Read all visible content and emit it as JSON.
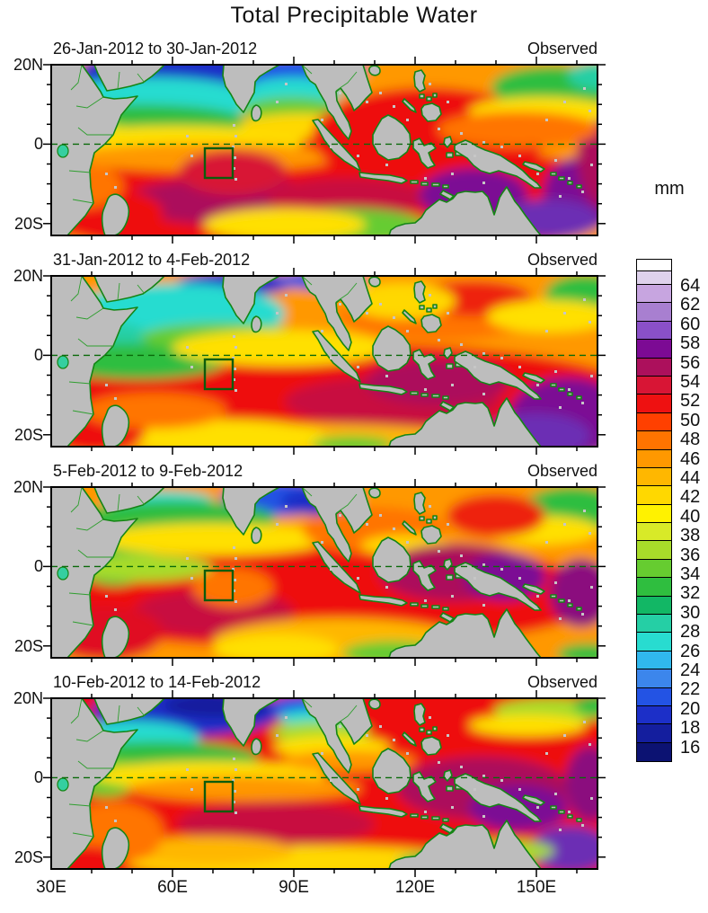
{
  "title": "Total Precipitable Water",
  "panels": [
    {
      "date_range": "26-Jan-2012 to 30-Jan-2012",
      "source": "Observed"
    },
    {
      "date_range": "31-Jan-2012 to 4-Feb-2012",
      "source": "Observed"
    },
    {
      "date_range": "5-Feb-2012 to 9-Feb-2012",
      "source": "Observed"
    },
    {
      "date_range": "10-Feb-2012 to 14-Feb-2012",
      "source": "Observed"
    }
  ],
  "axes": {
    "y_ticks": [
      "20N",
      "0",
      "20S"
    ],
    "x_ticks": [
      "30E",
      "60E",
      "90E",
      "120E",
      "150E"
    ]
  },
  "colorbar": {
    "unit": "mm",
    "labels": [
      64,
      62,
      60,
      58,
      56,
      54,
      52,
      50,
      48,
      46,
      44,
      42,
      40,
      38,
      36,
      34,
      32,
      30,
      28,
      26,
      24,
      22,
      20,
      18,
      16
    ],
    "colors": [
      "#ffffff",
      "#ded2ec",
      "#c7a5e0",
      "#a87fd0",
      "#8a50c8",
      "#7c0a94",
      "#ac105c",
      "#d81535",
      "#ee1111",
      "#ff4000",
      "#ff7400",
      "#ff9800",
      "#ffb700",
      "#ffd800",
      "#fff200",
      "#d8ea28",
      "#a8dc2a",
      "#66cc30",
      "#2fbe3f",
      "#12b765",
      "#25cfa5",
      "#28dcd0",
      "#30b8ee",
      "#3c86ec",
      "#2353e4",
      "#1c2fc8",
      "#141e9e",
      "#0c1272"
    ]
  },
  "map_style": {
    "land_fill": "#bdbdbd",
    "coast_green": "#158515",
    "equator_green": "#0a6a0a",
    "study_box_green": "#0c5c0c"
  },
  "chart_data": {
    "type": "heatmap",
    "title": "Total Precipitable Water",
    "variable_unit": "mm",
    "colorbar_levels_mm": [
      16,
      18,
      20,
      22,
      24,
      26,
      28,
      30,
      32,
      34,
      36,
      38,
      40,
      42,
      44,
      46,
      48,
      50,
      52,
      54,
      56,
      58,
      60,
      62,
      64
    ],
    "panels": [
      {
        "date_range": "26-Jan-2012 to 30-Jan-2012",
        "source": "Observed",
        "summary": "Dry (blue) Arabian Sea / north Bay of Bengal; moist red band 0-15S across basin; purple >56mm patches east of 140E south of equator"
      },
      {
        "date_range": "31-Jan-2012 to 4-Feb-2012",
        "source": "Observed",
        "summary": "Cyan Arabian Sea; broad red band 0-15S; large purple >56mm region 130-160E south of equator"
      },
      {
        "date_range": "5-Feb-2012 to 9-Feb-2012",
        "source": "Observed",
        "summary": "Dry blue around India; extensive red 5N-20S; crimson/purple cores in Maritime Continent and west Pacific"
      },
      {
        "date_range": "10-Feb-2012 to 14-Feb-2012",
        "source": "Observed",
        "summary": "Deep blue NW Arabian Sea; red dominates equatorial band basin-wide; green/cyan patch near 120E,23S; purple SE corner"
      }
    ],
    "x_axis": {
      "label_ticks": [
        "30E",
        "60E",
        "90E",
        "120E",
        "150E"
      ],
      "range_lon": [
        30,
        165
      ]
    },
    "y_axis": {
      "label_ticks": [
        "20N",
        "0",
        "20S"
      ],
      "range_lat": [
        -23,
        20
      ]
    },
    "annotations": {
      "equator_dashed_line": true,
      "study_region_box": "green outlined box ~68-75E, 1S-8S in every panel"
    },
    "legend_position": "right",
    "grid": false
  }
}
